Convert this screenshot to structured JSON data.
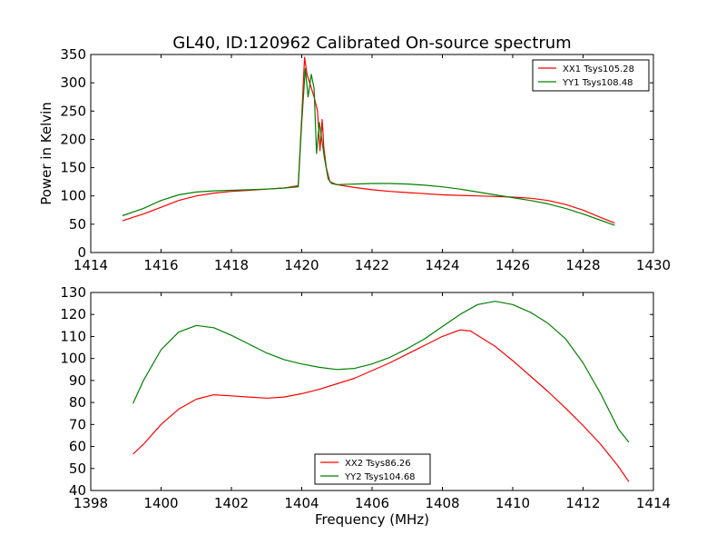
{
  "title": "GL40, ID:120962 Calibrated On-source spectrum",
  "chart_data": [
    {
      "type": "line",
      "ylabel": "Power in Kelvin",
      "xlabel": "",
      "xlim": [
        1414,
        1430
      ],
      "ylim": [
        0,
        350
      ],
      "xticks": [
        1414,
        1416,
        1418,
        1420,
        1422,
        1424,
        1426,
        1428,
        1430
      ],
      "yticks": [
        0,
        50,
        100,
        150,
        200,
        250,
        300,
        350
      ],
      "legend_position": "top-right",
      "series": [
        {
          "name": "XX1 Tsys105.28",
          "color": "#ff0000",
          "points": [
            [
              1414.9,
              56
            ],
            [
              1415.5,
              68
            ],
            [
              1416,
              80
            ],
            [
              1416.5,
              92
            ],
            [
              1417,
              100
            ],
            [
              1417.5,
              105
            ],
            [
              1418,
              108
            ],
            [
              1418.5,
              110
            ],
            [
              1419,
              112
            ],
            [
              1419.5,
              114
            ],
            [
              1419.9,
              118
            ],
            [
              1420.0,
              240
            ],
            [
              1420.08,
              345
            ],
            [
              1420.15,
              315
            ],
            [
              1420.25,
              295
            ],
            [
              1420.35,
              275
            ],
            [
              1420.45,
              250
            ],
            [
              1420.52,
              180
            ],
            [
              1420.58,
              235
            ],
            [
              1420.63,
              185
            ],
            [
              1420.7,
              150
            ],
            [
              1420.8,
              125
            ],
            [
              1421,
              120
            ],
            [
              1421.5,
              115
            ],
            [
              1422,
              111
            ],
            [
              1422.5,
              108
            ],
            [
              1423,
              106
            ],
            [
              1423.5,
              104
            ],
            [
              1424,
              102
            ],
            [
              1424.5,
              101
            ],
            [
              1425,
              100
            ],
            [
              1425.5,
              99
            ],
            [
              1426,
              98
            ],
            [
              1426.5,
              96
            ],
            [
              1427,
              92
            ],
            [
              1427.5,
              85
            ],
            [
              1428,
              75
            ],
            [
              1428.5,
              62
            ],
            [
              1428.9,
              52
            ]
          ]
        },
        {
          "name": "YY1 Tsys108.48",
          "color": "#008000",
          "points": [
            [
              1414.9,
              65
            ],
            [
              1415.5,
              78
            ],
            [
              1416,
              92
            ],
            [
              1416.5,
              102
            ],
            [
              1417,
              107
            ],
            [
              1417.5,
              109
            ],
            [
              1418,
              110
            ],
            [
              1418.5,
              111
            ],
            [
              1419,
              112
            ],
            [
              1419.5,
              114
            ],
            [
              1419.9,
              116
            ],
            [
              1420.0,
              230
            ],
            [
              1420.1,
              325
            ],
            [
              1420.18,
              275
            ],
            [
              1420.27,
              315
            ],
            [
              1420.35,
              290
            ],
            [
              1420.42,
              175
            ],
            [
              1420.5,
              230
            ],
            [
              1420.58,
              195
            ],
            [
              1420.65,
              165
            ],
            [
              1420.75,
              130
            ],
            [
              1420.85,
              122
            ],
            [
              1421,
              120
            ],
            [
              1421.5,
              121
            ],
            [
              1422,
              122
            ],
            [
              1422.5,
              122
            ],
            [
              1423,
              121
            ],
            [
              1423.5,
              119
            ],
            [
              1424,
              116
            ],
            [
              1424.5,
              112
            ],
            [
              1425,
              107
            ],
            [
              1425.5,
              102
            ],
            [
              1426,
              97
            ],
            [
              1426.5,
              92
            ],
            [
              1427,
              86
            ],
            [
              1427.5,
              78
            ],
            [
              1428,
              68
            ],
            [
              1428.5,
              57
            ],
            [
              1428.9,
              48
            ]
          ]
        }
      ]
    },
    {
      "type": "line",
      "ylabel": "",
      "xlabel": "Frequency (MHz)",
      "xlim": [
        1398,
        1414
      ],
      "ylim": [
        40,
        130
      ],
      "xticks": [
        1398,
        1400,
        1402,
        1404,
        1406,
        1408,
        1410,
        1412,
        1414
      ],
      "yticks": [
        40,
        50,
        60,
        70,
        80,
        90,
        100,
        110,
        120,
        130
      ],
      "legend_position": "bottom-center",
      "series": [
        {
          "name": "XX2 Tsys86.26",
          "color": "#ff0000",
          "points": [
            [
              1399.2,
              56.5
            ],
            [
              1399.5,
              61
            ],
            [
              1400,
              70
            ],
            [
              1400.5,
              77
            ],
            [
              1401,
              81.5
            ],
            [
              1401.5,
              83.5
            ],
            [
              1402,
              83
            ],
            [
              1402.5,
              82.5
            ],
            [
              1403,
              82
            ],
            [
              1403.5,
              82.5
            ],
            [
              1404,
              84
            ],
            [
              1404.5,
              86
            ],
            [
              1405,
              88.5
            ],
            [
              1405.5,
              91
            ],
            [
              1406,
              94.5
            ],
            [
              1406.5,
              98
            ],
            [
              1407,
              102
            ],
            [
              1407.5,
              106
            ],
            [
              1408,
              110
            ],
            [
              1408.5,
              113
            ],
            [
              1408.8,
              112.5
            ],
            [
              1409,
              110.5
            ],
            [
              1409.5,
              105.5
            ],
            [
              1410,
              99
            ],
            [
              1410.5,
              92
            ],
            [
              1411,
              85
            ],
            [
              1411.5,
              77.5
            ],
            [
              1412,
              69.5
            ],
            [
              1412.5,
              61
            ],
            [
              1413,
              51
            ],
            [
              1413.3,
              44
            ]
          ]
        },
        {
          "name": "YY2 Tsys104.68",
          "color": "#008000",
          "points": [
            [
              1399.2,
              79.5
            ],
            [
              1399.5,
              90
            ],
            [
              1400,
              104
            ],
            [
              1400.5,
              112
            ],
            [
              1401,
              115
            ],
            [
              1401.5,
              114
            ],
            [
              1402,
              110.5
            ],
            [
              1402.5,
              106.5
            ],
            [
              1403,
              102.5
            ],
            [
              1403.5,
              99.5
            ],
            [
              1404,
              97.5
            ],
            [
              1404.5,
              96
            ],
            [
              1405,
              95
            ],
            [
              1405.5,
              95.5
            ],
            [
              1406,
              97.5
            ],
            [
              1406.5,
              100.5
            ],
            [
              1407,
              104.5
            ],
            [
              1407.5,
              109
            ],
            [
              1408,
              114.5
            ],
            [
              1408.5,
              120
            ],
            [
              1409,
              124.5
            ],
            [
              1409.5,
              126
            ],
            [
              1410,
              124.5
            ],
            [
              1410.5,
              121
            ],
            [
              1411,
              116
            ],
            [
              1411.5,
              109
            ],
            [
              1412,
              98
            ],
            [
              1412.5,
              84
            ],
            [
              1413,
              68
            ],
            [
              1413.3,
              62
            ]
          ]
        }
      ]
    }
  ]
}
